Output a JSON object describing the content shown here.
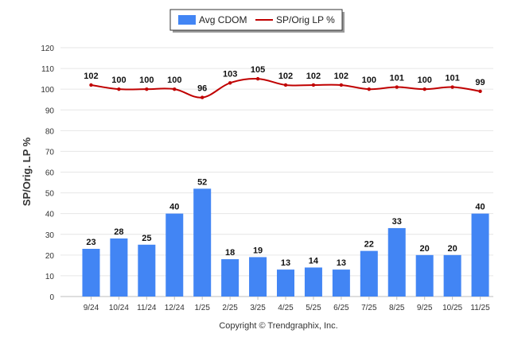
{
  "chart_data": {
    "type": "bar",
    "categories": [
      "9/24",
      "10/24",
      "11/24",
      "12/24",
      "1/25",
      "2/25",
      "3/25",
      "4/25",
      "5/25",
      "6/25",
      "7/25",
      "8/25",
      "9/25",
      "10/25",
      "11/25"
    ],
    "series": [
      {
        "name": "Avg CDOM",
        "kind": "bar",
        "color": "#4285f4",
        "values": [
          23,
          28,
          25,
          40,
          52,
          18,
          19,
          13,
          14,
          13,
          22,
          33,
          20,
          20,
          40
        ]
      },
      {
        "name": "SP/Orig LP %",
        "kind": "line",
        "color": "#c00000",
        "values": [
          102,
          100,
          100,
          100,
          96,
          103,
          105,
          102,
          102,
          102,
          100,
          101,
          100,
          101,
          99
        ]
      }
    ],
    "ylabel": "SP/Orig. LP %",
    "xlabel": "",
    "ylim": [
      0,
      120
    ],
    "yticks": [
      0,
      10,
      20,
      30,
      40,
      50,
      60,
      70,
      80,
      90,
      100,
      110,
      120
    ],
    "grid": true,
    "legend": "top-center"
  },
  "footer": {
    "copyright": "Copyright © Trendgraphix, Inc."
  }
}
